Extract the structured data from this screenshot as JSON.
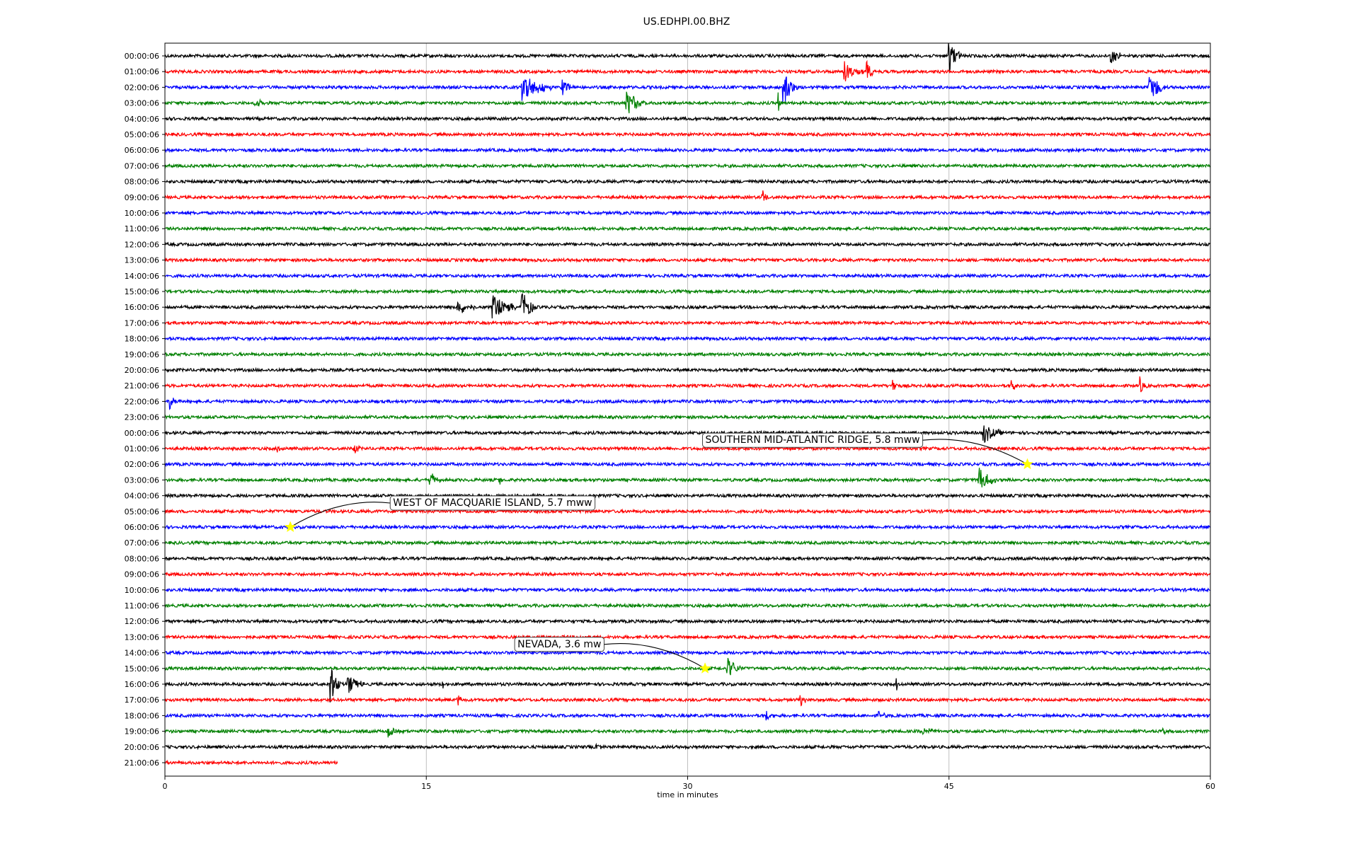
{
  "chart_data": {
    "type": "line",
    "title": "US.EDHPI.00.BHZ",
    "xlabel": "time in minutes",
    "xlim": [
      0,
      60
    ],
    "x_ticks": [
      0,
      15,
      30,
      45,
      60
    ],
    "grid": "vertical",
    "row_labels": [
      "00:00:06",
      "01:00:06",
      "02:00:06",
      "03:00:06",
      "04:00:06",
      "05:00:06",
      "06:00:06",
      "07:00:06",
      "08:00:06",
      "09:00:06",
      "10:00:06",
      "11:00:06",
      "12:00:06",
      "13:00:06",
      "14:00:06",
      "15:00:06",
      "16:00:06",
      "17:00:06",
      "18:00:06",
      "19:00:06",
      "20:00:06",
      "21:00:06",
      "22:00:06",
      "23:00:06",
      "00:00:06",
      "01:00:06",
      "02:00:06",
      "03:00:06",
      "04:00:06",
      "05:00:06",
      "06:00:06",
      "07:00:06",
      "08:00:06",
      "09:00:06",
      "10:00:06",
      "11:00:06",
      "12:00:06",
      "13:00:06",
      "14:00:06",
      "15:00:06",
      "16:00:06",
      "17:00:06",
      "18:00:06",
      "19:00:06",
      "20:00:06",
      "21:00:06"
    ],
    "trace_colors": [
      "#000000",
      "#ff0000",
      "#0000ff",
      "#008000"
    ],
    "last_row_end_minute": 9.9,
    "events": [
      {
        "row": 0,
        "t": 45.0,
        "amp": 1.6,
        "dur": 0.8
      },
      {
        "row": 0,
        "t": 54.3,
        "amp": 0.9,
        "dur": 0.7
      },
      {
        "row": 1,
        "t": 39.0,
        "amp": 0.9,
        "dur": 1.2
      },
      {
        "row": 1,
        "t": 40.3,
        "amp": 1.5,
        "dur": 0.4
      },
      {
        "row": 2,
        "t": 20.5,
        "amp": 1.4,
        "dur": 1.8
      },
      {
        "row": 2,
        "t": 22.8,
        "amp": 0.8,
        "dur": 0.8
      },
      {
        "row": 2,
        "t": 35.5,
        "amp": 1.6,
        "dur": 0.9
      },
      {
        "row": 2,
        "t": 56.5,
        "amp": 1.6,
        "dur": 1.0
      },
      {
        "row": 3,
        "t": 35.2,
        "amp": 1.2,
        "dur": 0.2
      },
      {
        "row": 3,
        "t": 26.5,
        "amp": 1.2,
        "dur": 1.2
      },
      {
        "row": 3,
        "t": 5.2,
        "amp": 0.5,
        "dur": 0.6
      },
      {
        "row": 9,
        "t": 34.3,
        "amp": 0.7,
        "dur": 0.4
      },
      {
        "row": 16,
        "t": 16.8,
        "amp": 0.7,
        "dur": 1.2
      },
      {
        "row": 16,
        "t": 18.8,
        "amp": 1.3,
        "dur": 1.4
      },
      {
        "row": 16,
        "t": 20.5,
        "amp": 1.8,
        "dur": 0.8
      },
      {
        "row": 21,
        "t": 41.8,
        "amp": 0.7,
        "dur": 0.3
      },
      {
        "row": 21,
        "t": 48.6,
        "amp": 0.6,
        "dur": 0.4
      },
      {
        "row": 21,
        "t": 56.0,
        "amp": 0.7,
        "dur": 0.4
      },
      {
        "row": 22,
        "t": 0.3,
        "amp": 0.7,
        "dur": 0.4
      },
      {
        "row": 24,
        "t": 47.0,
        "amp": 0.9,
        "dur": 1.2
      },
      {
        "row": 25,
        "t": 6.5,
        "amp": 0.6,
        "dur": 0.3
      },
      {
        "row": 25,
        "t": 10.9,
        "amp": 0.6,
        "dur": 0.3
      },
      {
        "row": 27,
        "t": 15.2,
        "amp": 0.7,
        "dur": 0.8
      },
      {
        "row": 27,
        "t": 19.2,
        "amp": 0.5,
        "dur": 0.3
      },
      {
        "row": 27,
        "t": 46.7,
        "amp": 1.2,
        "dur": 1.1
      },
      {
        "row": 39,
        "t": 32.3,
        "amp": 1.1,
        "dur": 0.9
      },
      {
        "row": 40,
        "t": 9.5,
        "amp": 1.9,
        "dur": 0.6
      },
      {
        "row": 40,
        "t": 10.5,
        "amp": 0.9,
        "dur": 1.2
      },
      {
        "row": 40,
        "t": 15.9,
        "amp": 0.5,
        "dur": 0.3
      },
      {
        "row": 40,
        "t": 42.0,
        "amp": 0.6,
        "dur": 0.3
      },
      {
        "row": 41,
        "t": 16.8,
        "amp": 0.6,
        "dur": 0.3
      },
      {
        "row": 41,
        "t": 36.5,
        "amp": 0.5,
        "dur": 0.4
      },
      {
        "row": 42,
        "t": 34.5,
        "amp": 0.5,
        "dur": 0.6
      },
      {
        "row": 42,
        "t": 41.0,
        "amp": 0.5,
        "dur": 0.5
      },
      {
        "row": 43,
        "t": 12.8,
        "amp": 0.6,
        "dur": 1.0
      },
      {
        "row": 43,
        "t": 43.5,
        "amp": 0.6,
        "dur": 0.8
      },
      {
        "row": 43,
        "t": 57.3,
        "amp": 0.6,
        "dur": 0.2
      },
      {
        "row": 44,
        "t": 24.8,
        "amp": 0.5,
        "dur": 0.3
      }
    ],
    "annotations": [
      {
        "text": "SOUTHERN MID-ATLANTIC RIDGE, 5.8 mww",
        "row": 26,
        "t": 49.5
      },
      {
        "text": "WEST OF MACQUARIE ISLAND, 5.7 mww",
        "row": 30,
        "t": 7.2
      },
      {
        "text": "NEVADA, 3.6 mw",
        "row": 39,
        "t": 31.0
      }
    ],
    "marker_color": "#ffff00"
  }
}
